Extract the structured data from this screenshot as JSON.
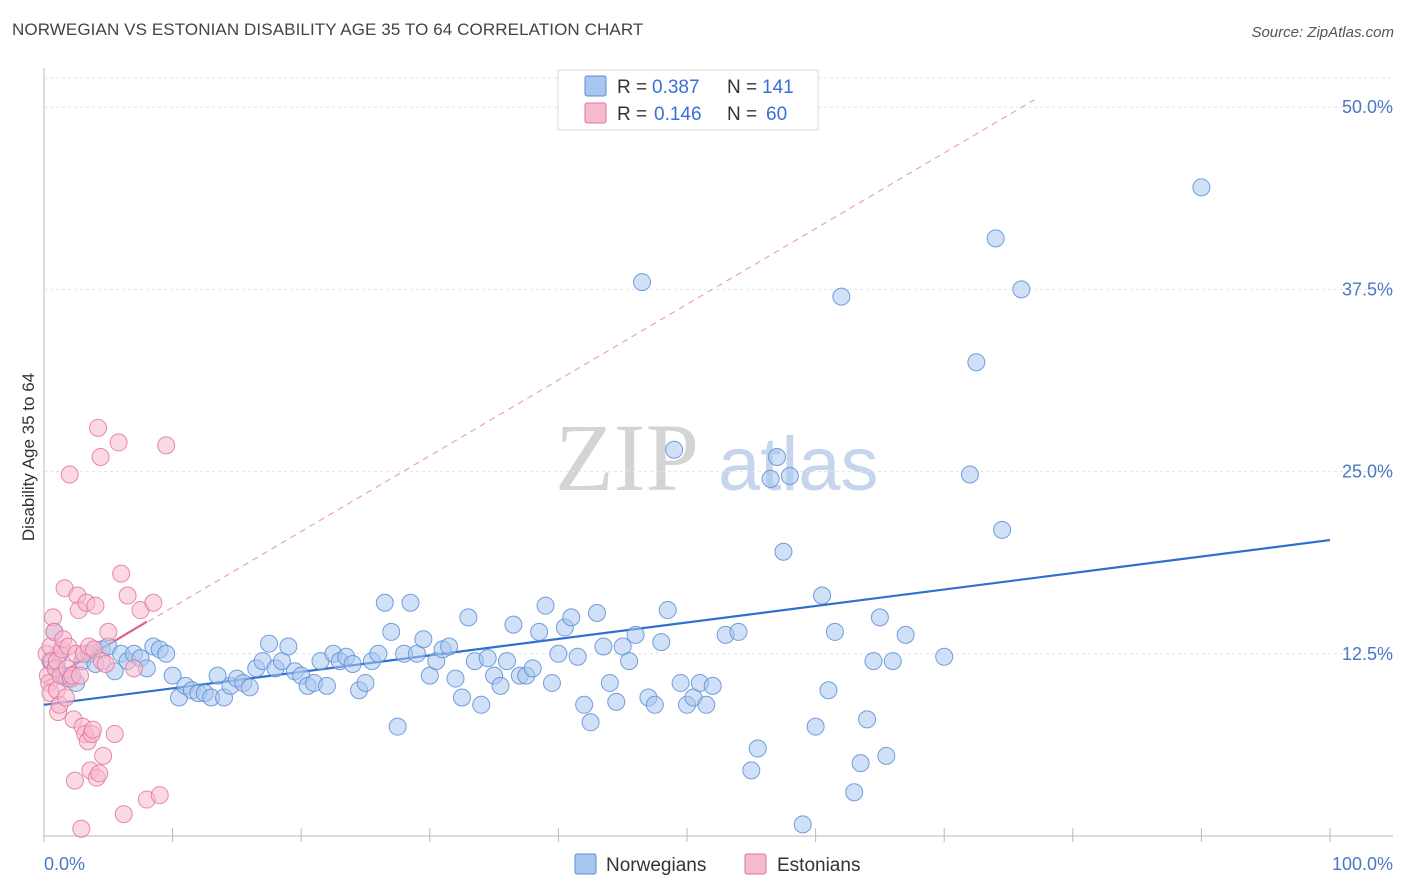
{
  "header": {
    "title": "NORWEGIAN VS ESTONIAN DISABILITY AGE 35 TO 64 CORRELATION CHART",
    "source": "Source: ZipAtlas.com"
  },
  "watermark": {
    "zip": "ZIP",
    "atlas": "atlas"
  },
  "legend_stats": [
    {
      "r_label": "R =",
      "r_value": "0.387",
      "n_label": "N =",
      "n_value": "141",
      "color": "#a9c6ef",
      "edge": "#5b8fd6"
    },
    {
      "r_label": "R =",
      "r_value": "0.146",
      "n_label": "N =",
      "n_value": "60",
      "color": "#f7b9cd",
      "edge": "#e2769c"
    }
  ],
  "chart_data": {
    "type": "scatter",
    "title": "NORWEGIAN VS ESTONIAN DISABILITY AGE 35 TO 64 CORRELATION CHART",
    "xlabel": "",
    "ylabel": "Disability Age 35 to 64",
    "xlim": [
      0,
      100
    ],
    "ylim": [
      0,
      52
    ],
    "x_tick_labels": [
      "0.0%",
      "100.0%"
    ],
    "y_ticks": [
      12.5,
      25.0,
      37.5,
      50.0
    ],
    "y_tick_labels": [
      "12.5%",
      "25.0%",
      "37.5%",
      "50.0%"
    ],
    "grid": true,
    "legend_position": "bottom",
    "series": [
      {
        "name": "Norwegians",
        "color": "#a9c6ef",
        "edge": "#5b8fd6",
        "trend": {
          "x": [
            0,
            100
          ],
          "y": [
            9.0,
            20.3
          ],
          "color": "#2f6fd0"
        },
        "points": [
          [
            0.5,
            12.0
          ],
          [
            0.8,
            14.0
          ],
          [
            1.0,
            11.5
          ],
          [
            1.2,
            12.5
          ],
          [
            1.5,
            11.0
          ],
          [
            1.8,
            10.8
          ],
          [
            2.0,
            11.0
          ],
          [
            2.5,
            10.5
          ],
          [
            3.0,
            12.0
          ],
          [
            3.5,
            12.5
          ],
          [
            4.0,
            11.8
          ],
          [
            4.5,
            12.8
          ],
          [
            5.0,
            13.0
          ],
          [
            5.5,
            11.3
          ],
          [
            6.0,
            12.5
          ],
          [
            6.5,
            12.0
          ],
          [
            7.0,
            12.5
          ],
          [
            7.5,
            12.2
          ],
          [
            8.0,
            11.5
          ],
          [
            8.5,
            13.0
          ],
          [
            9.0,
            12.8
          ],
          [
            9.5,
            12.5
          ],
          [
            10.0,
            11.0
          ],
          [
            10.5,
            9.5
          ],
          [
            11.0,
            10.3
          ],
          [
            11.5,
            10.0
          ],
          [
            12.0,
            9.8
          ],
          [
            12.5,
            9.8
          ],
          [
            13.0,
            9.5
          ],
          [
            13.5,
            11.0
          ],
          [
            14.0,
            9.5
          ],
          [
            14.5,
            10.3
          ],
          [
            15.0,
            10.8
          ],
          [
            15.5,
            10.5
          ],
          [
            16.0,
            10.2
          ],
          [
            16.5,
            11.5
          ],
          [
            17.0,
            12.0
          ],
          [
            17.5,
            13.2
          ],
          [
            18.0,
            11.5
          ],
          [
            18.5,
            12.0
          ],
          [
            19.0,
            13.0
          ],
          [
            19.5,
            11.3
          ],
          [
            20.0,
            11.0
          ],
          [
            20.5,
            10.3
          ],
          [
            21.0,
            10.5
          ],
          [
            21.5,
            12.0
          ],
          [
            22.0,
            10.3
          ],
          [
            22.5,
            12.5
          ],
          [
            23.0,
            12.0
          ],
          [
            23.5,
            12.3
          ],
          [
            24.0,
            11.8
          ],
          [
            24.5,
            10.0
          ],
          [
            25.0,
            10.5
          ],
          [
            25.5,
            12.0
          ],
          [
            26.0,
            12.5
          ],
          [
            26.5,
            16.0
          ],
          [
            27.0,
            14.0
          ],
          [
            27.5,
            7.5
          ],
          [
            28.0,
            12.5
          ],
          [
            28.5,
            16.0
          ],
          [
            29.0,
            12.5
          ],
          [
            29.5,
            13.5
          ],
          [
            30.0,
            11.0
          ],
          [
            30.5,
            12.0
          ],
          [
            31.0,
            12.8
          ],
          [
            31.5,
            13.0
          ],
          [
            32.0,
            10.8
          ],
          [
            32.5,
            9.5
          ],
          [
            33.0,
            15.0
          ],
          [
            33.5,
            12.0
          ],
          [
            34.0,
            9.0
          ],
          [
            34.5,
            12.2
          ],
          [
            35.0,
            11.0
          ],
          [
            35.5,
            10.3
          ],
          [
            36.0,
            12.0
          ],
          [
            36.5,
            14.5
          ],
          [
            37.0,
            11.0
          ],
          [
            37.5,
            11.0
          ],
          [
            38.0,
            11.5
          ],
          [
            38.5,
            14.0
          ],
          [
            39.0,
            15.8
          ],
          [
            39.5,
            10.5
          ],
          [
            40.0,
            12.5
          ],
          [
            40.5,
            14.3
          ],
          [
            41.0,
            15.0
          ],
          [
            41.5,
            12.3
          ],
          [
            42.0,
            9.0
          ],
          [
            42.5,
            7.8
          ],
          [
            43.0,
            15.3
          ],
          [
            43.5,
            13.0
          ],
          [
            44.0,
            10.5
          ],
          [
            44.5,
            9.2
          ],
          [
            45.0,
            13.0
          ],
          [
            45.5,
            12.0
          ],
          [
            46.0,
            13.8
          ],
          [
            46.5,
            38.0
          ],
          [
            47.0,
            9.5
          ],
          [
            47.5,
            9.0
          ],
          [
            48.0,
            13.3
          ],
          [
            48.5,
            15.5
          ],
          [
            49.0,
            26.5
          ],
          [
            49.5,
            10.5
          ],
          [
            50.0,
            9.0
          ],
          [
            50.5,
            9.5
          ],
          [
            51.0,
            10.5
          ],
          [
            51.5,
            9.0
          ],
          [
            52.0,
            10.3
          ],
          [
            53.0,
            13.8
          ],
          [
            54.0,
            14.0
          ],
          [
            55.0,
            4.5
          ],
          [
            55.5,
            6.0
          ],
          [
            56.5,
            24.5
          ],
          [
            57.0,
            26.0
          ],
          [
            57.5,
            19.5
          ],
          [
            58.0,
            24.7
          ],
          [
            59.0,
            0.8
          ],
          [
            60.0,
            7.5
          ],
          [
            60.5,
            16.5
          ],
          [
            61.0,
            10.0
          ],
          [
            61.5,
            14.0
          ],
          [
            62.0,
            37.0
          ],
          [
            63.0,
            3.0
          ],
          [
            63.5,
            5.0
          ],
          [
            64.0,
            8.0
          ],
          [
            64.5,
            12.0
          ],
          [
            65.0,
            15.0
          ],
          [
            65.5,
            5.5
          ],
          [
            66.0,
            12.0
          ],
          [
            67.0,
            13.8
          ],
          [
            70.0,
            12.3
          ],
          [
            72.0,
            24.8
          ],
          [
            72.5,
            32.5
          ],
          [
            74.0,
            41.0
          ],
          [
            74.5,
            21.0
          ],
          [
            76.0,
            37.5
          ],
          [
            90.0,
            44.5
          ]
        ]
      },
      {
        "name": "Estonians",
        "color": "#f7b9cd",
        "edge": "#e2769c",
        "trend": {
          "x": [
            0,
            8.0
          ],
          "y": [
            10.5,
            14.7
          ],
          "color": "#e2608c"
        },
        "trend_extended": {
          "x": [
            0,
            77
          ],
          "y": [
            10.5,
            50.5
          ],
          "color": "#e9a3b8"
        },
        "points": [
          [
            0.2,
            12.5
          ],
          [
            0.3,
            11.0
          ],
          [
            0.4,
            10.5
          ],
          [
            0.5,
            13.0
          ],
          [
            0.5,
            9.8
          ],
          [
            0.6,
            12.0
          ],
          [
            0.7,
            15.0
          ],
          [
            0.8,
            14.0
          ],
          [
            0.9,
            11.5
          ],
          [
            1.0,
            10.0
          ],
          [
            1.0,
            12.0
          ],
          [
            1.1,
            8.5
          ],
          [
            1.2,
            9.0
          ],
          [
            1.3,
            11.0
          ],
          [
            1.4,
            12.8
          ],
          [
            1.5,
            13.5
          ],
          [
            1.6,
            17.0
          ],
          [
            1.7,
            9.5
          ],
          [
            1.8,
            11.5
          ],
          [
            1.9,
            13.0
          ],
          [
            2.0,
            24.8
          ],
          [
            2.1,
            10.8
          ],
          [
            2.2,
            11.0
          ],
          [
            2.3,
            8.0
          ],
          [
            2.4,
            3.8
          ],
          [
            2.5,
            12.5
          ],
          [
            2.6,
            16.5
          ],
          [
            2.7,
            15.5
          ],
          [
            2.8,
            11.0
          ],
          [
            2.9,
            0.5
          ],
          [
            3.0,
            7.5
          ],
          [
            3.1,
            12.5
          ],
          [
            3.2,
            7.0
          ],
          [
            3.3,
            16.0
          ],
          [
            3.4,
            6.5
          ],
          [
            3.5,
            13.0
          ],
          [
            3.6,
            4.5
          ],
          [
            3.7,
            7.0
          ],
          [
            3.8,
            7.3
          ],
          [
            3.9,
            12.8
          ],
          [
            4.0,
            15.8
          ],
          [
            4.1,
            4.0
          ],
          [
            4.2,
            28.0
          ],
          [
            4.3,
            4.3
          ],
          [
            4.4,
            26.0
          ],
          [
            4.5,
            12.0
          ],
          [
            4.6,
            5.5
          ],
          [
            4.8,
            11.8
          ],
          [
            5.0,
            14.0
          ],
          [
            5.5,
            7.0
          ],
          [
            5.8,
            27.0
          ],
          [
            6.0,
            18.0
          ],
          [
            6.2,
            1.5
          ],
          [
            6.5,
            16.5
          ],
          [
            7.0,
            11.5
          ],
          [
            7.5,
            15.5
          ],
          [
            8.0,
            2.5
          ],
          [
            8.5,
            16.0
          ],
          [
            9.0,
            2.8
          ],
          [
            9.5,
            26.8
          ]
        ]
      }
    ]
  }
}
